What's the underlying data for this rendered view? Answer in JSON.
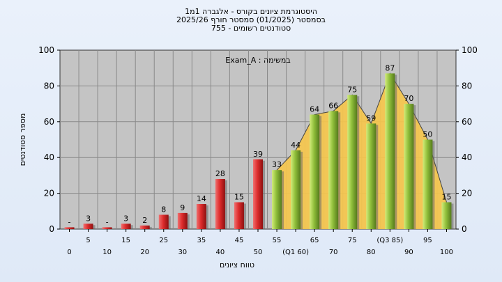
{
  "chart_data": {
    "type": "bar",
    "title_lines": [
      "היסטוגרמת ציונים בקורס - אלגברה 1מ1",
      "בסמסטר  (01/2025)  סמסטר חורף 2025/26",
      "סטודנטים רשומים - 755"
    ],
    "annotation": "במשימה : Exam_A",
    "ylabel": "מספר סטודנטים",
    "xlabel": "טווח ציונים",
    "ylim": [
      0,
      100
    ],
    "yticks": [
      0,
      20,
      40,
      60,
      80,
      100
    ],
    "grid": true,
    "categories": [
      "0",
      "5",
      "10",
      "15",
      "20",
      "25",
      "30",
      "35",
      "40",
      "45",
      "50",
      "55",
      "60",
      "65",
      "70",
      "75",
      "80",
      "85",
      "90",
      "95",
      "100"
    ],
    "x_tick_labels": [
      "0",
      "5",
      "10",
      "15",
      "20",
      "25",
      "30",
      "35",
      "40",
      "45",
      "50",
      "55",
      "(Q1 60)",
      "65",
      "70",
      "75",
      "80",
      "(Q3 85)",
      "90",
      "95",
      "100"
    ],
    "values": [
      1,
      3,
      1,
      3,
      2,
      8,
      9,
      14,
      28,
      15,
      39,
      33,
      44,
      64,
      66,
      75,
      59,
      87,
      70,
      50,
      15
    ],
    "value_labels": [
      "-",
      "3",
      "-",
      "3",
      "2",
      "8",
      "9",
      "14",
      "28",
      "15",
      "39",
      "33",
      "44",
      "64",
      "66",
      "75",
      "59",
      "87",
      "70",
      "50",
      "15"
    ],
    "pass_threshold": 55,
    "colors": {
      "fail_bar": "#dd2c2c",
      "pass_bar": "#8fbe3a",
      "area_fill": "#f7c64a",
      "plot_bg": "#c4c4c4",
      "grid": "#8a8a8a"
    }
  }
}
